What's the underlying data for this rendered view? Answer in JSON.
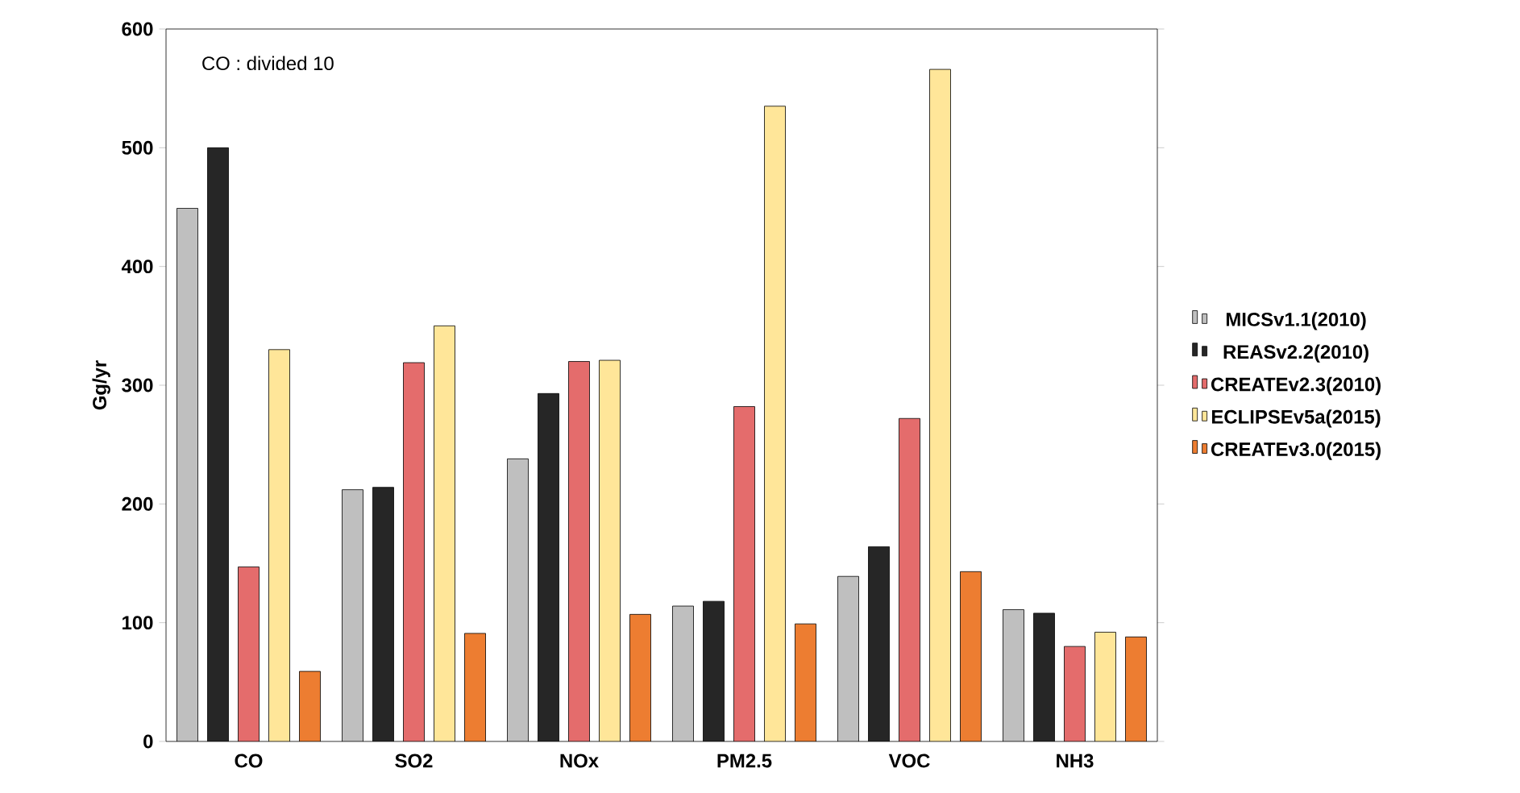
{
  "chart_data": {
    "type": "bar",
    "ylabel": "Gg/yr",
    "categories": [
      "CO",
      "SO2",
      "NOx",
      "PM2.5",
      "VOC",
      "NH3"
    ],
    "series": [
      {
        "name": "MICSv1.1(2010)",
        "color": "#bfbfbf",
        "values": [
          449,
          212,
          238,
          114,
          139,
          111
        ]
      },
      {
        "name": "REASv2.2(2010)",
        "color": "#262626",
        "values": [
          500,
          214,
          293,
          118,
          164,
          108
        ]
      },
      {
        "name": "CREATEv2.3(2010)",
        "color": "#e46c6c",
        "values": [
          147,
          319,
          320,
          282,
          272,
          80
        ]
      },
      {
        "name": "ECLIPSEv5a(2015)",
        "color": "#ffe699",
        "values": [
          330,
          350,
          321,
          535,
          566,
          92
        ]
      },
      {
        "name": "CREATEv3.0(2015)",
        "color": "#ed7d31",
        "values": [
          59,
          91,
          107,
          99,
          143,
          88
        ]
      }
    ],
    "ylim": [
      0,
      600
    ],
    "yticks": [
      0,
      100,
      200,
      300,
      400,
      500,
      600
    ],
    "grid": false,
    "legend": "right",
    "annotations": [
      "CO : divided 10"
    ]
  }
}
